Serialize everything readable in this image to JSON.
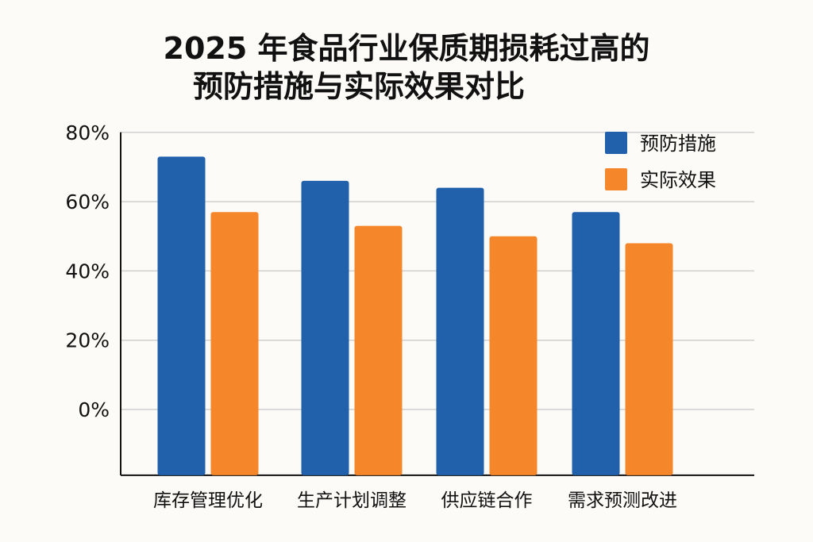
{
  "chart_data": {
    "type": "bar",
    "title": [
      "2025 年食品行业保质期损耗过高的",
      "预防措施与实际效果对比"
    ],
    "categories": [
      "库存管理优化",
      "生产计划调整",
      "供应链合作",
      "需求预测改进"
    ],
    "series": [
      {
        "name": "预防措施",
        "color": "#2160aa",
        "values": [
          73,
          66,
          64,
          57
        ]
      },
      {
        "name": "实际效果",
        "color": "#f5872a",
        "values": [
          57,
          53,
          50,
          48
        ]
      }
    ],
    "yticks": [
      "0%",
      "20%",
      "40%",
      "60%",
      "80%"
    ],
    "ytick_values": [
      0,
      20,
      40,
      60,
      80
    ],
    "ylim": [
      -19,
      80
    ],
    "grid": true,
    "legend": "top-right",
    "xlabel": "",
    "ylabel": ""
  }
}
